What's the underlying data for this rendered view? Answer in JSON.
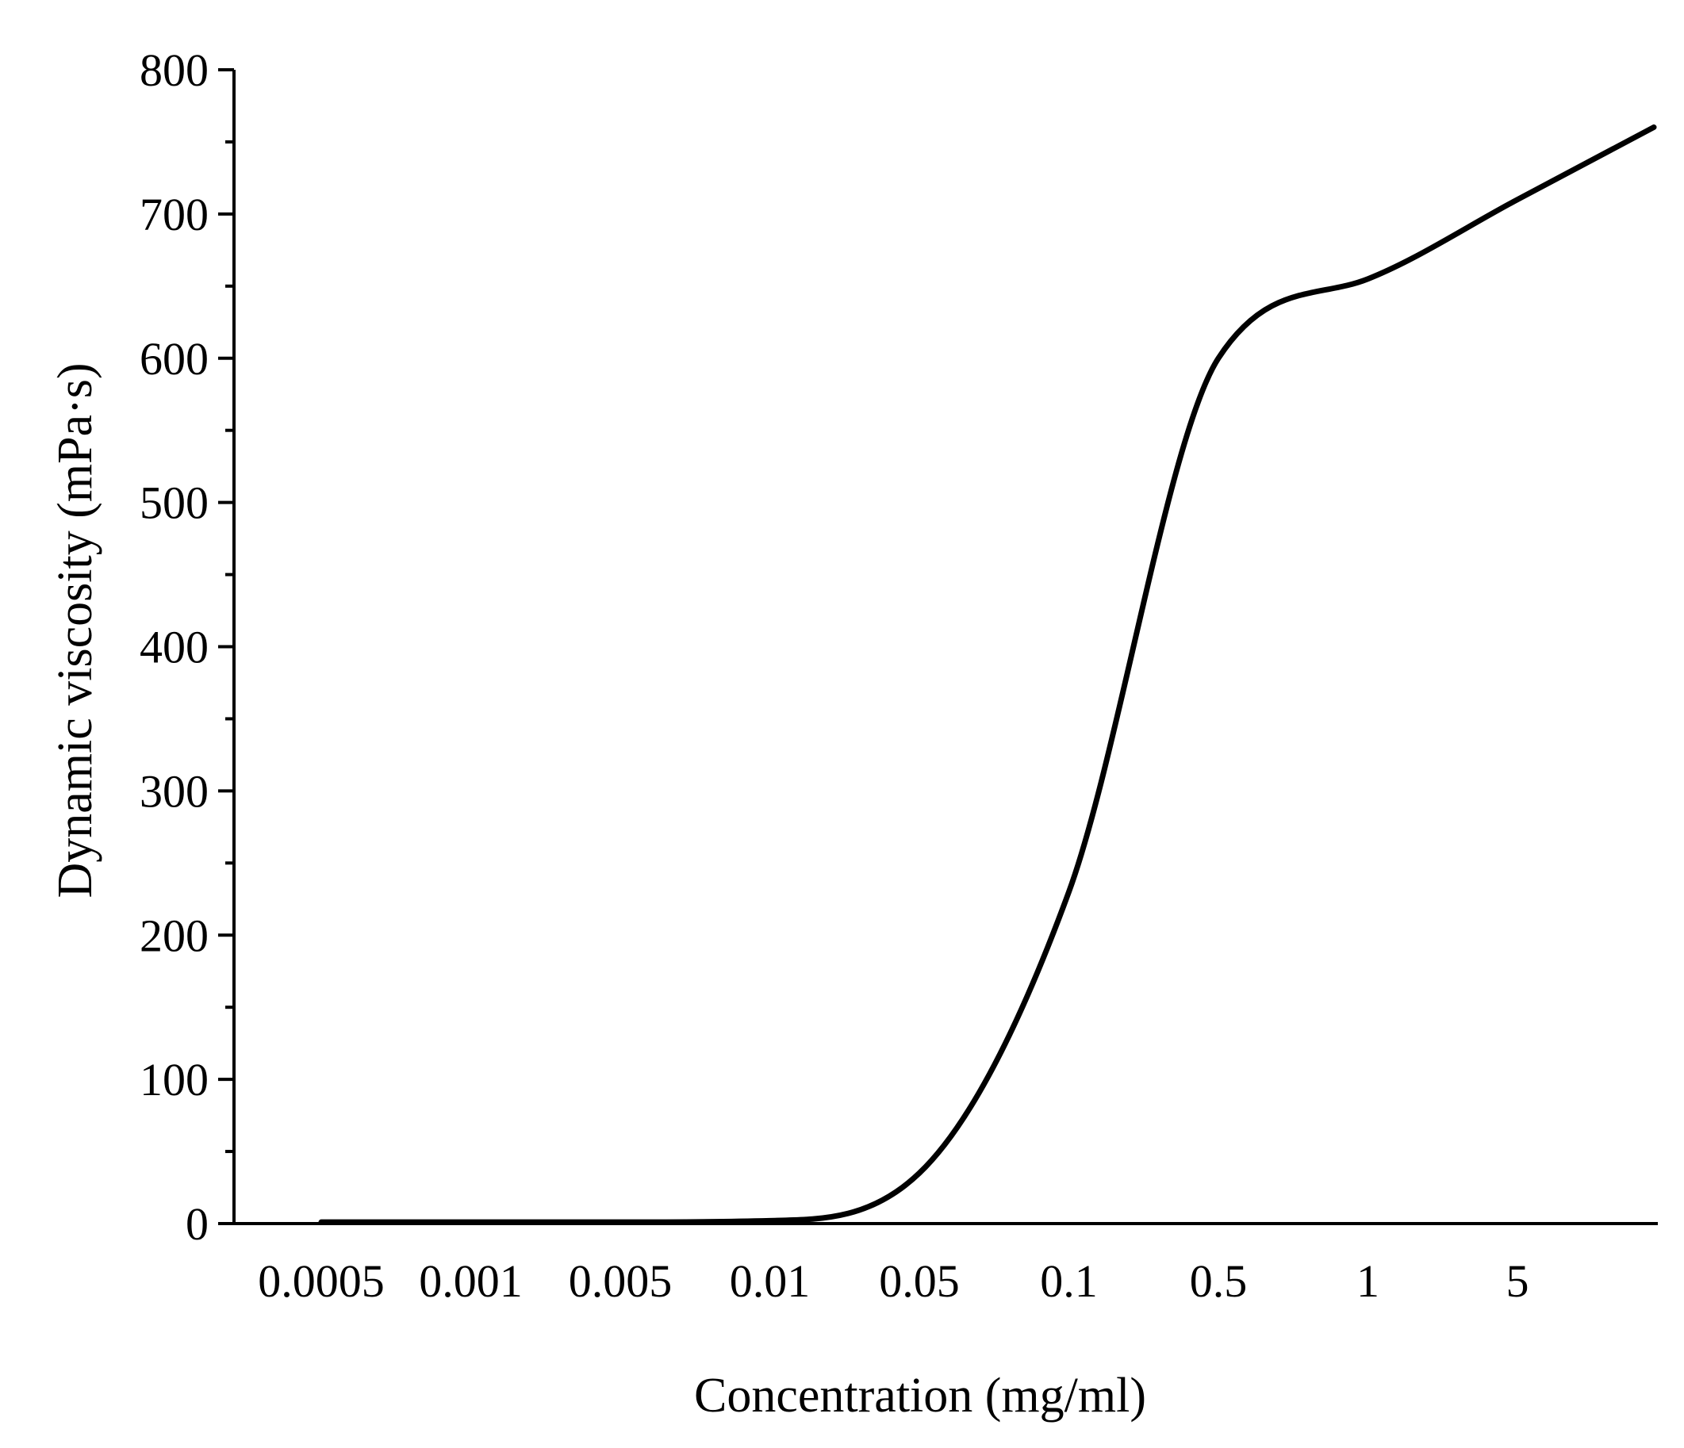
{
  "chart_data": {
    "type": "line",
    "title": "",
    "xlabel": "Concentration (mg/ml)",
    "ylabel": "Dynamic viscosity (mPa·s)",
    "x_categories": [
      "0.0005",
      "0.001",
      "0.005",
      "0.01",
      "0.05",
      "0.1",
      "0.5",
      "1",
      "5"
    ],
    "x_scale": "categorical (tick labels evenly spaced)",
    "y_ticks": [
      0,
      100,
      200,
      300,
      400,
      500,
      600,
      700,
      800
    ],
    "ylim": [
      0,
      800
    ],
    "grid": false,
    "legend": "none",
    "line_color": "#000000",
    "series": [
      {
        "x": [
          "0.0005",
          "0.001",
          "0.005",
          "0.01",
          "0.05",
          "0.1",
          "0.5",
          "1",
          "5"
        ],
        "y": [
          1,
          1,
          1,
          2,
          35,
          230,
          600,
          655,
          710
        ]
      }
    ]
  }
}
